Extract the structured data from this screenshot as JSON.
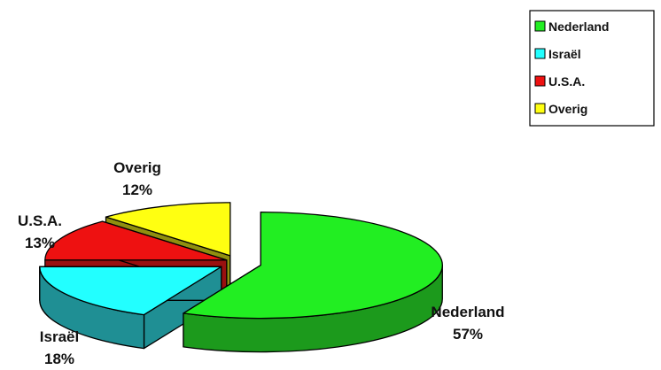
{
  "chart_data": {
    "type": "pie",
    "title": "",
    "categories": [
      "Nederland",
      "Israël",
      "U.S.A.",
      "Overig"
    ],
    "values": [
      57,
      18,
      13,
      12
    ],
    "value_labels": [
      "57%",
      "18%",
      "13%",
      "12%"
    ],
    "colors": [
      "#22ee22",
      "#22ffff",
      "#ee1111",
      "#ffff11"
    ],
    "side_colors": [
      "#1c9a1c",
      "#1f8f94",
      "#991010",
      "#8f8f10"
    ],
    "legend": {
      "placement": "top-right",
      "entries": [
        "Nederland",
        "Israël",
        "U.S.A.",
        "Overig"
      ]
    },
    "exploded": true,
    "three_d": true
  }
}
